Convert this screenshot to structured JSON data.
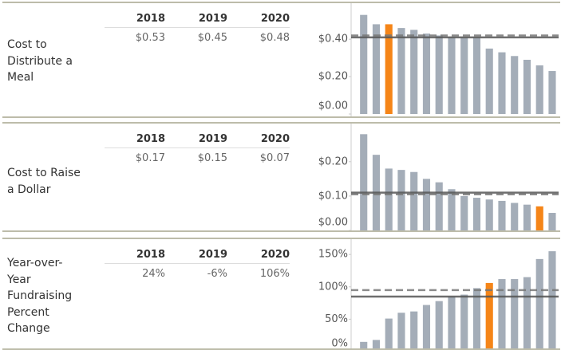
{
  "chart_data": [
    {
      "type": "bar",
      "title": "Cost to Distribute a Meal",
      "table": {
        "columns": [
          "2018",
          "2019",
          "2020"
        ],
        "values": [
          "$0.53",
          "$0.45",
          "$0.48"
        ]
      },
      "values": [
        0.53,
        0.48,
        0.48,
        0.46,
        0.45,
        0.43,
        0.42,
        0.41,
        0.41,
        0.41,
        0.35,
        0.33,
        0.31,
        0.29,
        0.26,
        0.23
      ],
      "color": "#a4adb8",
      "highlight_index": 2,
      "highlight_color": "#f58518",
      "ylim": [
        0,
        0.55
      ],
      "yticks": [
        {
          "value": 0,
          "label": "$0.00"
        },
        {
          "value": 0.2,
          "label": "$0.20"
        },
        {
          "value": 0.4,
          "label": "$0.40"
        }
      ],
      "reference_lines": [
        {
          "value": 0.41,
          "style": "solid"
        },
        {
          "value": 0.42,
          "style": "dashed"
        }
      ],
      "grid": false
    },
    {
      "type": "bar",
      "title": "Cost to Raise a Dollar",
      "table": {
        "columns": [
          "2018",
          "2019",
          "2020"
        ],
        "values": [
          "$0.17",
          "$0.15",
          "$0.07"
        ]
      },
      "values": [
        0.28,
        0.22,
        0.18,
        0.176,
        0.17,
        0.15,
        0.14,
        0.12,
        0.1,
        0.095,
        0.09,
        0.086,
        0.08,
        0.075,
        0.07,
        0.051
      ],
      "color": "#a4adb8",
      "highlight_index": 14,
      "highlight_color": "#f58518",
      "ylim": [
        0,
        0.29
      ],
      "yticks": [
        {
          "value": 0,
          "label": "$0.00"
        },
        {
          "value": 0.1,
          "label": "$0.10"
        },
        {
          "value": 0.2,
          "label": "$0.20"
        }
      ],
      "reference_lines": [
        {
          "value": 0.11,
          "style": "solid"
        },
        {
          "value": 0.105,
          "style": "dashed"
        }
      ],
      "grid": false
    },
    {
      "type": "bar",
      "title": "Year-over-Year Fundraising Percent Change",
      "table": {
        "columns": [
          "2018",
          "2019",
          "2020"
        ],
        "values": [
          "24%",
          "-6%",
          "106%"
        ]
      },
      "values": [
        15,
        18,
        51,
        60,
        62,
        72,
        78,
        85,
        88,
        98,
        106,
        112,
        112,
        115,
        143,
        155
      ],
      "color": "#a4adb8",
      "highlight_index": 10,
      "highlight_color": "#f58518",
      "ylim": [
        0,
        165
      ],
      "yticks": [
        {
          "value": 0,
          "label": "0%"
        },
        {
          "value": 50,
          "label": "50%"
        },
        {
          "value": 100,
          "label": "100%"
        },
        {
          "value": 150,
          "label": "150%"
        }
      ],
      "reference_lines": [
        {
          "value": 85,
          "style": "solid"
        },
        {
          "value": 95,
          "style": "dashed"
        }
      ],
      "grid": false
    }
  ]
}
